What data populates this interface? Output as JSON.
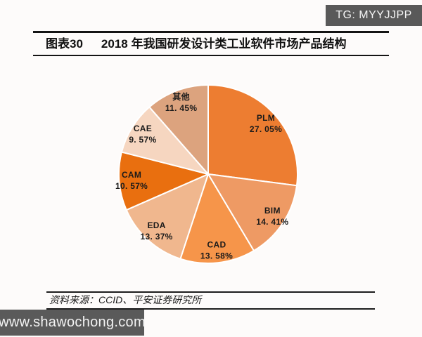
{
  "header": {
    "badge": "TG: MYYJJPP",
    "badge_bg": "#595959"
  },
  "title": {
    "index": "图表30",
    "text": "2018 年我国研发设计类工业软件市场产品结构"
  },
  "chart_data": {
    "type": "pie",
    "title": "2018 年我国研发设计类工业软件市场产品结构",
    "start_angle": "top",
    "direction": "clockwise",
    "legend_position": "none",
    "labels_on_slices": true,
    "slices": [
      {
        "label": "PLM",
        "value": 27.05,
        "pct_display": "27. 05%",
        "color": "#ED7D31"
      },
      {
        "label": "BIM",
        "value": 14.41,
        "pct_display": "14. 41%",
        "color": "#EE9A64"
      },
      {
        "label": "CAD",
        "value": 13.58,
        "pct_display": "13. 58%",
        "color": "#F6954A"
      },
      {
        "label": "EDA",
        "value": 13.37,
        "pct_display": "13. 37%",
        "color": "#F0B78E"
      },
      {
        "label": "CAM",
        "value": 10.57,
        "pct_display": "10. 57%",
        "color": "#E96F0F"
      },
      {
        "label": "CAE",
        "value": 9.57,
        "pct_display": "9. 57%",
        "color": "#F6D6C0"
      },
      {
        "label": "其他",
        "value": 11.45,
        "pct_display": "11. 45%",
        "color": "#DCA37E"
      }
    ],
    "slice_border_color": "#FFFFFF"
  },
  "source": {
    "text": "资料来源：CCID、平安证券研究所"
  },
  "footer": {
    "url": "www.shawochong.com",
    "bg": "#5a5a5a"
  }
}
